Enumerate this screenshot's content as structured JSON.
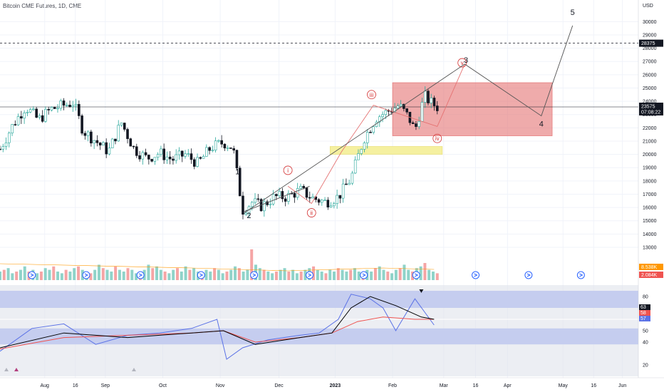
{
  "header": {
    "title": "Bitcoin CME Futures, 1D, CME"
  },
  "colors": {
    "up": "#26a69a",
    "down": "#131722",
    "upVol": "#8fd3c9",
    "downVol": "#f5a5a5",
    "box": "#e57373",
    "yellow": "#f5f0a0",
    "rsiBand": "#c5cdef",
    "rsiLine": "#5b72e6",
    "rsiMa": "#000000",
    "rsiSignal": "#ef5350",
    "wave": "#555555",
    "subWave": "#e57373"
  },
  "chart_data": {
    "type": "candlestick",
    "title": "Bitcoin CME Futures, 1D, CME",
    "price_axis": {
      "unit": "USD",
      "ticks": [
        30000,
        29000,
        28000,
        27000,
        26000,
        25000,
        24000,
        23000,
        22000,
        21000,
        20000,
        19000,
        18000,
        17000,
        16000,
        15000,
        14000,
        13000
      ],
      "ylim": [
        12300,
        31200
      ]
    },
    "time_axis": {
      "labels": [
        {
          "text": "Aug",
          "t": 0.07
        },
        {
          "text": "16",
          "t": 0.118
        },
        {
          "text": "Sep",
          "t": 0.165
        },
        {
          "text": "Oct",
          "t": 0.255
        },
        {
          "text": "Nov",
          "t": 0.345
        },
        {
          "text": "Dec",
          "t": 0.437
        },
        {
          "text": "2023",
          "t": 0.525
        },
        {
          "text": "Feb",
          "t": 0.615
        },
        {
          "text": "Mar",
          "t": 0.695
        },
        {
          "text": "16",
          "t": 0.745
        },
        {
          "text": "Apr",
          "t": 0.795
        },
        {
          "text": "May",
          "t": 0.882
        },
        {
          "text": "16",
          "t": 0.93
        },
        {
          "text": "Jun",
          "t": 0.975
        }
      ]
    },
    "last_price": {
      "value": 23575,
      "countdown": "07:08:22"
    },
    "dashed_level": {
      "value": 28375
    },
    "candles_path": [
      [
        0.0,
        20400
      ],
      [
        0.02,
        22200
      ],
      [
        0.04,
        23600
      ],
      [
        0.06,
        22600
      ],
      [
        0.08,
        23400
      ],
      [
        0.1,
        23700
      ],
      [
        0.115,
        23900
      ],
      [
        0.13,
        21800
      ],
      [
        0.15,
        21000
      ],
      [
        0.17,
        20200
      ],
      [
        0.19,
        22400
      ],
      [
        0.21,
        20400
      ],
      [
        0.23,
        19700
      ],
      [
        0.25,
        20100
      ],
      [
        0.27,
        19600
      ],
      [
        0.29,
        20000
      ],
      [
        0.31,
        19300
      ],
      [
        0.33,
        20500
      ],
      [
        0.35,
        20900
      ],
      [
        0.365,
        20500
      ],
      [
        0.38,
        15800
      ],
      [
        0.395,
        16400
      ],
      [
        0.41,
        16100
      ],
      [
        0.43,
        16800
      ],
      [
        0.45,
        16800
      ],
      [
        0.47,
        17300
      ],
      [
        0.49,
        16700
      ],
      [
        0.51,
        16400
      ],
      [
        0.53,
        16800
      ],
      [
        0.55,
        18200
      ],
      [
        0.57,
        21200
      ],
      [
        0.59,
        22800
      ],
      [
        0.61,
        23300
      ],
      [
        0.625,
        23700
      ],
      [
        0.64,
        22800
      ],
      [
        0.65,
        21800
      ],
      [
        0.665,
        24400
      ],
      [
        0.675,
        23900
      ],
      [
        0.685,
        23575
      ]
    ],
    "volume_label_up": "8.538K",
    "volume_label_down": "2.084K",
    "volume_bars": [
      5,
      6,
      7,
      4,
      5,
      6,
      8,
      5,
      6,
      4,
      5,
      7,
      6,
      8,
      5,
      4,
      6,
      5,
      7,
      8,
      6,
      5,
      4,
      6,
      9,
      7,
      6,
      5,
      8,
      6,
      5,
      7,
      6,
      4,
      5,
      6,
      9,
      7,
      8,
      6,
      5,
      4,
      6,
      7,
      5,
      8,
      6,
      7,
      5,
      4,
      6,
      5,
      7,
      6,
      4,
      5,
      6,
      8,
      7,
      5,
      6,
      18,
      9,
      7,
      6,
      5,
      4,
      5,
      6,
      7,
      5,
      6,
      4,
      5,
      6,
      7,
      8,
      6,
      5,
      4,
      6,
      5,
      7,
      6,
      5,
      6,
      7,
      5,
      4,
      6,
      5,
      7,
      8,
      6,
      5,
      4,
      6,
      7,
      9,
      6,
      5,
      7,
      8,
      10,
      6,
      5,
      4
    ],
    "volume_bar_colors": "alternating up/down",
    "waves": [
      {
        "label": "1",
        "price": 18500,
        "t": 0.372
      },
      {
        "label": "2",
        "price": 15200,
        "t": 0.39
      },
      {
        "label": "3",
        "price": 26900,
        "t": 0.73
      },
      {
        "label": "4",
        "price": 22100,
        "t": 0.848
      },
      {
        "label": "5",
        "price": 30500,
        "t": 0.897
      }
    ],
    "wave_path": [
      [
        0.383,
        15600
      ],
      [
        0.728,
        26800
      ],
      [
        0.848,
        22900
      ],
      [
        0.897,
        29700
      ]
    ],
    "sub_waves": [
      {
        "label": "i",
        "price": 18800,
        "t": 0.451
      },
      {
        "label": "ii",
        "price": 15600,
        "t": 0.488
      },
      {
        "label": "iii",
        "price": 24500,
        "t": 0.582
      },
      {
        "label": "iv",
        "price": 21200,
        "t": 0.685
      },
      {
        "label": "v",
        "price": 26900,
        "t": 0.724
      }
    ],
    "sub_wave_path": [
      [
        0.451,
        17600
      ],
      [
        0.488,
        16300
      ],
      [
        0.535,
        20200
      ],
      [
        0.585,
        23700
      ],
      [
        0.685,
        22100
      ],
      [
        0.728,
        26800
      ]
    ],
    "red_box": {
      "t0": 0.615,
      "t1": 0.865,
      "p0": 21400,
      "p1": 25400
    },
    "yellow_box": {
      "t0": 0.517,
      "t1": 0.693,
      "p0": 20000,
      "p1": 20600
    },
    "rsi": {
      "ticks": [
        80,
        60,
        50,
        40,
        20
      ],
      "ylim": [
        10,
        90
      ],
      "band_upper": [
        70,
        85
      ],
      "band_lower": [
        38,
        52
      ],
      "value_labels": [
        "63",
        "58",
        "57"
      ],
      "rsi_line": [
        [
          0.0,
          32
        ],
        [
          0.05,
          52
        ],
        [
          0.1,
          56
        ],
        [
          0.15,
          38
        ],
        [
          0.2,
          46
        ],
        [
          0.25,
          48
        ],
        [
          0.3,
          52
        ],
        [
          0.34,
          60
        ],
        [
          0.355,
          25
        ],
        [
          0.38,
          35
        ],
        [
          0.42,
          42
        ],
        [
          0.47,
          46
        ],
        [
          0.5,
          48
        ],
        [
          0.53,
          60
        ],
        [
          0.55,
          82
        ],
        [
          0.58,
          78
        ],
        [
          0.6,
          70
        ],
        [
          0.62,
          50
        ],
        [
          0.65,
          78
        ],
        [
          0.68,
          55
        ]
      ],
      "rsi_ma": [
        [
          0.0,
          35
        ],
        [
          0.1,
          48
        ],
        [
          0.2,
          44
        ],
        [
          0.3,
          48
        ],
        [
          0.35,
          50
        ],
        [
          0.4,
          38
        ],
        [
          0.47,
          44
        ],
        [
          0.52,
          48
        ],
        [
          0.55,
          70
        ],
        [
          0.58,
          80
        ],
        [
          0.62,
          72
        ],
        [
          0.66,
          62
        ],
        [
          0.68,
          60
        ]
      ],
      "rsi_signal": [
        [
          0.0,
          34
        ],
        [
          0.1,
          44
        ],
        [
          0.2,
          46
        ],
        [
          0.3,
          48
        ],
        [
          0.35,
          50
        ],
        [
          0.4,
          40
        ],
        [
          0.47,
          44
        ],
        [
          0.52,
          48
        ],
        [
          0.56,
          58
        ],
        [
          0.6,
          62
        ],
        [
          0.65,
          60
        ],
        [
          0.68,
          60
        ]
      ]
    }
  }
}
